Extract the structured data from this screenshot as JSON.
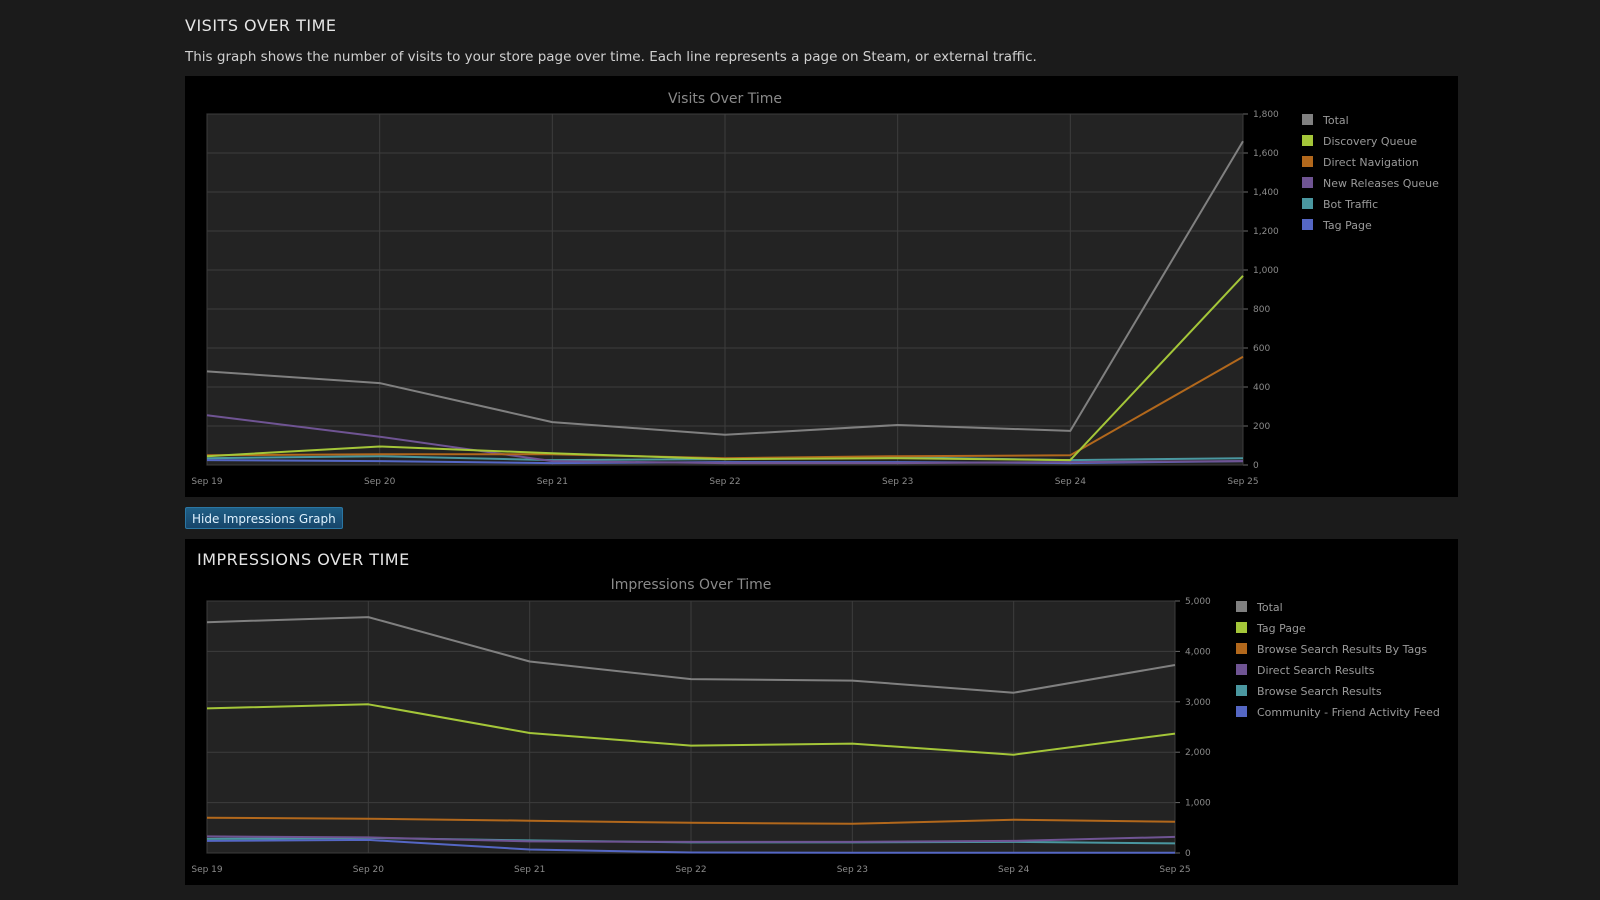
{
  "visits_section": {
    "title": "VISITS OVER TIME",
    "description": "This graph shows the number of visits to your store page over time. Each line represents a page on Steam, or external traffic."
  },
  "hide_button_label": "Hide Impressions Graph",
  "impressions_section": {
    "title": "IMPRESSIONS OVER TIME"
  },
  "colors": {
    "plot_bg": "#232323",
    "grid": "#3d3d3d"
  },
  "chart_data": [
    {
      "type": "line",
      "title": "Visits Over Time",
      "categories": [
        "Sep 19",
        "Sep 20",
        "Sep 21",
        "Sep 22",
        "Sep 23",
        "Sep 24",
        "Sep 25"
      ],
      "ylim": [
        0,
        1800
      ],
      "yticks": [
        "0",
        "200",
        "400",
        "600",
        "800",
        "1,000",
        "1,200",
        "1,400",
        "1,600",
        "1,800"
      ],
      "legend_position": "right",
      "grid": true,
      "series": [
        {
          "name": "Total",
          "color": "#808080",
          "values": [
            480,
            420,
            220,
            155,
            205,
            175,
            1660
          ]
        },
        {
          "name": "Discovery Queue",
          "color": "#a4c639",
          "values": [
            45,
            95,
            60,
            30,
            35,
            25,
            970
          ]
        },
        {
          "name": "Direct Navigation",
          "color": "#b2681c",
          "values": [
            50,
            55,
            55,
            35,
            45,
            50,
            555
          ]
        },
        {
          "name": "New Releases Queue",
          "color": "#6f5493",
          "values": [
            255,
            145,
            20,
            10,
            10,
            15,
            20
          ]
        },
        {
          "name": "Bot Traffic",
          "color": "#4a97a0",
          "values": [
            35,
            45,
            25,
            30,
            40,
            25,
            35
          ]
        },
        {
          "name": "Tag Page",
          "color": "#5567c4",
          "values": [
            25,
            20,
            10,
            15,
            15,
            10,
            20
          ]
        }
      ]
    },
    {
      "type": "line",
      "title": "Impressions Over Time",
      "categories": [
        "Sep 19",
        "Sep 20",
        "Sep 21",
        "Sep 22",
        "Sep 23",
        "Sep 24",
        "Sep 25"
      ],
      "ylim": [
        0,
        5000
      ],
      "yticks": [
        "0",
        "1,000",
        "2,000",
        "3,000",
        "4,000",
        "5,000"
      ],
      "legend_position": "right",
      "grid": true,
      "series": [
        {
          "name": "Total",
          "color": "#808080",
          "values": [
            4580,
            4680,
            3800,
            3450,
            3420,
            3180,
            3730
          ]
        },
        {
          "name": "Tag Page",
          "color": "#a4c639",
          "values": [
            2870,
            2950,
            2380,
            2130,
            2170,
            1950,
            2370
          ]
        },
        {
          "name": "Browse Search Results By Tags",
          "color": "#b2681c",
          "values": [
            700,
            680,
            640,
            600,
            580,
            660,
            620
          ]
        },
        {
          "name": "Direct Search Results",
          "color": "#6f5493",
          "values": [
            330,
            310,
            230,
            220,
            220,
            240,
            320
          ]
        },
        {
          "name": "Browse Search Results",
          "color": "#4a97a0",
          "values": [
            280,
            300,
            250,
            210,
            210,
            220,
            190
          ]
        },
        {
          "name": "Community - Friend Activity Feed",
          "color": "#5567c4",
          "values": [
            240,
            260,
            70,
            10,
            5,
            5,
            5
          ]
        }
      ]
    }
  ]
}
